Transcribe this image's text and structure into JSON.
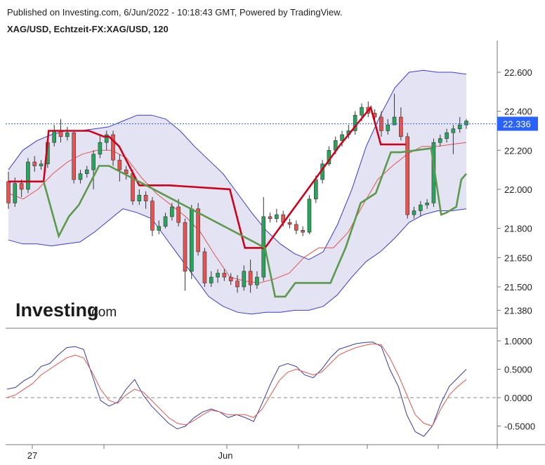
{
  "header": {
    "published": "Published on Investing.com, 6/Jun/2022 - 10:18:43 GMT, Powered by TradingView.",
    "symbol": "XAG/USD, Echtzeit-FX:XAG/USD, 120"
  },
  "logo": {
    "main": "Investing",
    "suffix": ".com"
  },
  "colors": {
    "up": "#26a65b",
    "down": "#e8534f",
    "band_fill": "#e3e3f3",
    "band_line": "#3b3bd9",
    "mid_line": "#e8534f",
    "supertrend_down": "#d0021b",
    "supertrend_up": "#5a9a4a",
    "last_price": "#2962ff",
    "osc_fast": "#3a3aa8",
    "osc_slow": "#e8534f"
  },
  "chart_data": [
    {
      "type": "candlestick",
      "yticks": [
        "22.600",
        "22.400",
        "22.200",
        "22.000",
        "21.800",
        "21.650",
        "21.500",
        "21.380"
      ],
      "last_price": "22.336",
      "candles": [
        [
          22.04,
          21.93,
          22.09,
          21.9
        ],
        [
          21.93,
          22.03,
          22.06,
          21.91
        ],
        [
          22.03,
          22.0,
          22.05,
          21.96
        ],
        [
          22.0,
          22.14,
          22.16,
          21.98
        ],
        [
          22.14,
          22.12,
          22.17,
          22.09
        ],
        [
          22.12,
          22.13,
          22.15,
          22.1
        ],
        [
          22.13,
          22.24,
          22.26,
          22.11
        ],
        [
          22.24,
          22.3,
          22.33,
          22.22
        ],
        [
          22.3,
          22.27,
          22.36,
          22.24
        ],
        [
          22.27,
          22.29,
          22.32,
          22.25
        ],
        [
          22.29,
          22.05,
          22.3,
          22.03
        ],
        [
          22.05,
          22.08,
          22.1,
          22.03
        ],
        [
          22.08,
          22.1,
          22.12,
          22.06
        ],
        [
          22.1,
          22.18,
          22.2,
          22.0
        ],
        [
          22.18,
          22.24,
          22.28,
          22.16
        ],
        [
          22.24,
          22.28,
          22.3,
          22.2
        ],
        [
          22.28,
          22.15,
          22.3,
          22.12
        ],
        [
          22.15,
          22.1,
          22.18,
          22.04
        ],
        [
          22.1,
          22.08,
          22.12,
          22.05
        ],
        [
          22.08,
          21.94,
          22.1,
          21.92
        ],
        [
          21.94,
          21.97,
          22.0,
          21.92
        ],
        [
          21.97,
          21.94,
          21.99,
          21.9
        ],
        [
          21.94,
          21.79,
          21.96,
          21.76
        ],
        [
          21.79,
          21.81,
          21.84,
          21.77
        ],
        [
          21.81,
          21.86,
          21.88,
          21.8
        ],
        [
          21.86,
          21.91,
          21.93,
          21.84
        ],
        [
          21.91,
          21.83,
          21.95,
          21.81
        ],
        [
          21.83,
          21.58,
          21.85,
          21.48
        ],
        [
          21.58,
          21.9,
          21.92,
          21.54
        ],
        [
          21.9,
          21.68,
          21.93,
          21.66
        ],
        [
          21.68,
          21.52,
          21.7,
          21.5
        ],
        [
          21.52,
          21.55,
          21.58,
          21.5
        ],
        [
          21.55,
          21.57,
          21.59,
          21.52
        ],
        [
          21.57,
          21.55,
          21.59,
          21.53
        ],
        [
          21.55,
          21.53,
          21.57,
          21.51
        ],
        [
          21.53,
          21.5,
          21.56,
          21.47
        ],
        [
          21.5,
          21.58,
          21.61,
          21.48
        ],
        [
          21.58,
          21.51,
          21.64,
          21.47
        ],
        [
          21.51,
          21.55,
          21.58,
          21.49
        ],
        [
          21.55,
          21.86,
          21.96,
          21.53
        ],
        [
          21.86,
          21.85,
          21.88,
          21.83
        ],
        [
          21.85,
          21.87,
          21.9,
          21.83
        ],
        [
          21.87,
          21.83,
          21.89,
          21.81
        ],
        [
          21.83,
          21.82,
          21.85,
          21.8
        ],
        [
          21.82,
          21.79,
          21.84,
          21.77
        ],
        [
          21.79,
          21.78,
          21.81,
          21.76
        ],
        [
          21.78,
          21.95,
          21.97,
          21.77
        ],
        [
          21.95,
          22.05,
          22.07,
          21.93
        ],
        [
          22.05,
          22.13,
          22.15,
          22.03
        ],
        [
          22.13,
          22.2,
          22.22,
          22.12
        ],
        [
          22.2,
          22.25,
          22.27,
          22.18
        ],
        [
          22.25,
          22.28,
          22.3,
          22.22
        ],
        [
          22.28,
          22.3,
          22.33,
          22.26
        ],
        [
          22.3,
          22.38,
          22.4,
          22.28
        ],
        [
          22.38,
          22.42,
          22.44,
          22.35
        ],
        [
          22.42,
          22.39,
          22.45,
          22.37
        ],
        [
          22.39,
          22.37,
          22.41,
          22.35
        ],
        [
          22.37,
          22.3,
          22.4,
          22.27
        ],
        [
          22.3,
          22.33,
          22.36,
          22.28
        ],
        [
          22.33,
          22.37,
          22.49,
          22.35
        ],
        [
          22.37,
          22.27,
          22.42,
          22.25
        ],
        [
          22.27,
          21.87,
          22.29,
          21.85
        ],
        [
          21.87,
          21.89,
          21.91,
          21.85
        ],
        [
          21.89,
          21.92,
          21.94,
          21.86
        ],
        [
          21.92,
          21.93,
          21.95,
          21.9
        ],
        [
          21.93,
          22.24,
          22.26,
          21.91
        ],
        [
          22.24,
          22.26,
          22.28,
          22.22
        ],
        [
          22.26,
          22.29,
          22.31,
          22.24
        ],
        [
          22.29,
          22.31,
          22.33,
          22.18
        ],
        [
          22.31,
          22.33,
          22.37,
          22.29
        ],
        [
          22.33,
          22.35,
          22.36,
          22.31
        ]
      ],
      "bollinger_upper": [
        22.1,
        22.2,
        22.25,
        22.28,
        22.3,
        22.3,
        22.31,
        22.32,
        22.35,
        22.38,
        22.38,
        22.36,
        22.3,
        22.22,
        22.15,
        22.08,
        21.98,
        21.88,
        21.79,
        21.72,
        21.67,
        21.64,
        21.68,
        21.82,
        22.0,
        22.22,
        22.38,
        22.52,
        22.6,
        22.61,
        22.6,
        22.6,
        22.59
      ],
      "bollinger_lower": [
        21.74,
        21.72,
        21.72,
        21.71,
        21.72,
        21.73,
        21.78,
        21.84,
        21.9,
        21.88,
        21.85,
        21.75,
        21.65,
        21.55,
        21.45,
        21.4,
        21.37,
        21.36,
        21.37,
        21.37,
        21.38,
        21.38,
        21.4,
        21.46,
        21.55,
        21.63,
        21.68,
        21.75,
        21.83,
        21.87,
        21.89,
        21.89,
        21.9
      ],
      "bollinger_mid": [
        21.98,
        21.95,
        22.0,
        22.08,
        22.14,
        22.18,
        22.2,
        22.2,
        22.16,
        22.06,
        21.98,
        21.92,
        21.86,
        21.78,
        21.66,
        21.55,
        21.53,
        21.52,
        21.54,
        21.57,
        21.65,
        21.7,
        21.7,
        21.78,
        21.92,
        22.05,
        22.12,
        22.18,
        22.22,
        22.22,
        22.23,
        22.24
      ],
      "supertrend_down": [
        [
          0,
          22.04
        ],
        [
          7,
          22.04
        ],
        [
          8,
          22.3
        ],
        [
          12,
          22.3
        ],
        [
          16,
          22.3
        ],
        [
          19,
          22.27
        ],
        [
          20,
          22.27
        ],
        [
          22,
          22.22
        ],
        [
          26,
          22.02
        ],
        [
          32,
          22.02
        ],
        [
          44,
          22.0
        ],
        [
          47,
          21.7
        ],
        [
          51,
          21.7
        ],
        [
          66,
          22.23
        ],
        [
          72,
          22.42
        ],
        [
          74,
          22.23
        ],
        [
          79,
          22.23
        ]
      ],
      "supertrend_up": [
        [
          7,
          22.04
        ],
        [
          10,
          21.76
        ],
        [
          12,
          21.86
        ],
        [
          14,
          21.92
        ],
        [
          18,
          22.12
        ],
        [
          20,
          22.12
        ],
        [
          51,
          21.7
        ],
        [
          53,
          21.45
        ],
        [
          55,
          21.45
        ],
        [
          57,
          21.52
        ],
        [
          64,
          21.52
        ],
        [
          67,
          21.7
        ],
        [
          70,
          21.93
        ],
        [
          73,
          21.98
        ],
        [
          76,
          22.19
        ],
        [
          78,
          22.19
        ],
        [
          84,
          22.21
        ],
        [
          86,
          21.87
        ],
        [
          87,
          21.88
        ],
        [
          89,
          21.91
        ],
        [
          90,
          22.05
        ],
        [
          91,
          22.08
        ]
      ]
    },
    {
      "type": "line",
      "yticks": [
        "1.0000",
        "0.5000",
        "0.0000",
        "-0.5000"
      ],
      "ylim": [
        -0.85,
        1.15
      ],
      "series": [
        {
          "values": [
            0.15,
            0.18,
            0.3,
            0.38,
            0.55,
            0.6,
            0.75,
            0.88,
            0.9,
            0.85,
            0.4,
            -0.05,
            -0.15,
            -0.08,
            0.15,
            0.32,
            0.05,
            -0.15,
            -0.3,
            -0.45,
            -0.55,
            -0.5,
            -0.35,
            -0.25,
            -0.2,
            -0.25,
            -0.35,
            -0.3,
            -0.35,
            -0.42,
            -0.1,
            0.25,
            0.55,
            0.6,
            0.55,
            0.4,
            0.35,
            0.5,
            0.7,
            0.85,
            0.9,
            0.95,
            0.97,
            0.98,
            0.9,
            0.5,
            0.2,
            -0.3,
            -0.6,
            -0.68,
            -0.5,
            -0.1,
            0.2,
            0.35,
            0.5
          ]
        },
        {
          "values": [
            0.0,
            0.05,
            0.15,
            0.25,
            0.4,
            0.5,
            0.6,
            0.7,
            0.75,
            0.7,
            0.45,
            0.15,
            -0.05,
            -0.1,
            0.05,
            0.15,
            0.1,
            -0.05,
            -0.2,
            -0.35,
            -0.45,
            -0.48,
            -0.4,
            -0.3,
            -0.22,
            -0.25,
            -0.3,
            -0.3,
            -0.3,
            -0.35,
            -0.2,
            0.05,
            0.3,
            0.45,
            0.5,
            0.45,
            0.4,
            0.45,
            0.6,
            0.75,
            0.82,
            0.88,
            0.92,
            0.95,
            0.93,
            0.7,
            0.4,
            0.05,
            -0.3,
            -0.45,
            -0.5,
            -0.2,
            0.05,
            0.2,
            0.32
          ]
        }
      ]
    }
  ],
  "xaxis": {
    "labels": [
      {
        "text": "27"
      },
      {
        "text": "Jun"
      }
    ]
  }
}
